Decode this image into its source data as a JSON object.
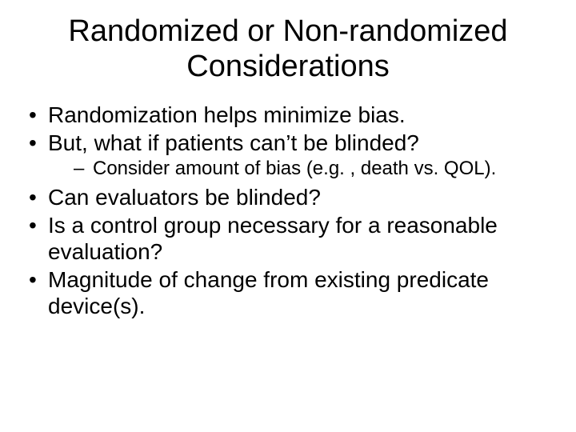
{
  "slide": {
    "title": "Randomized or Non-randomized Considerations",
    "bullets": [
      {
        "text": "Randomization helps minimize bias."
      },
      {
        "text": "But, what if patients can’t be blinded?",
        "sub": [
          {
            "text": "Consider amount of bias (e.g. , death vs. QOL)."
          }
        ]
      },
      {
        "text": "Can evaluators be blinded?"
      },
      {
        "text": "Is a control group necessary for a reasonable evaluation?"
      },
      {
        "text": "Magnitude of change from existing predicate device(s)."
      }
    ]
  },
  "style": {
    "background_color": "#ffffff",
    "text_color": "#000000",
    "font_family": "Arial",
    "title_fontsize": 38,
    "bullet_fontsize": 28,
    "subbullet_fontsize": 24
  }
}
